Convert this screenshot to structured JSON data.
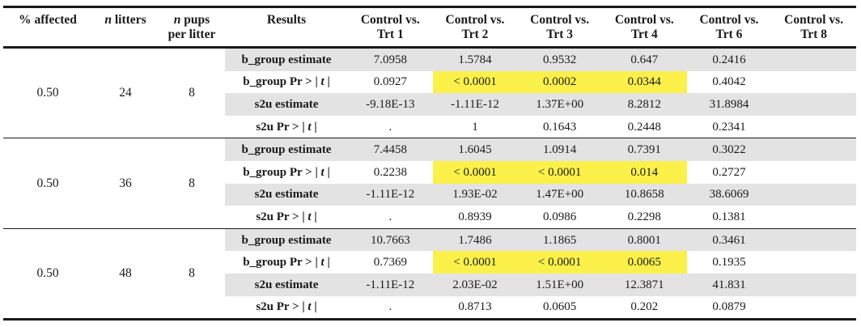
{
  "table": {
    "headers": {
      "pct_affected": "% affected",
      "n_litters_italic": "n",
      "n_litters_rest": " litters",
      "n_pups_italic": "n",
      "n_pups_rest_1": " pups",
      "n_pups_rest_2": "per litter",
      "results": "Results",
      "comparisons": [
        {
          "line1": "Control vs.",
          "line2": "Trt 1"
        },
        {
          "line1": "Control vs.",
          "line2": "Trt 2"
        },
        {
          "line1": "Control vs.",
          "line2": "Trt 3"
        },
        {
          "line1": "Control vs.",
          "line2": "Trt 4"
        },
        {
          "line1": "Control vs.",
          "line2": "Trt 6"
        },
        {
          "line1": "Control vs.",
          "line2": "Trt 8"
        }
      ]
    },
    "highlight_color": "#fcf14b",
    "shade_color": "#e3e3e3",
    "groups": [
      {
        "pct_affected": "0.50",
        "n_litters": "24",
        "n_pups": "8",
        "rows": [
          {
            "label": "b_group estimate",
            "values": [
              "7.0958",
              "1.5784",
              "0.9532",
              "0.647",
              "0.2416",
              ""
            ],
            "highlight": [
              false,
              false,
              false,
              false,
              false,
              false
            ]
          },
          {
            "label_pre": "b_group Pr > | ",
            "label_t": "t",
            "label_post": " |",
            "values": [
              "0.0927",
              "< 0.0001",
              "0.0002",
              "0.0344",
              "0.4042",
              ""
            ],
            "highlight": [
              false,
              true,
              true,
              true,
              false,
              false
            ]
          },
          {
            "label": "s2u estimate",
            "values": [
              "-9.18E-13",
              "-1.11E-12",
              "1.37E+00",
              "8.2812",
              "31.8984",
              ""
            ],
            "highlight": [
              false,
              false,
              false,
              false,
              false,
              false
            ]
          },
          {
            "label_pre": "s2u Pr > | ",
            "label_t": "t",
            "label_post": " |",
            "values": [
              ".",
              "1",
              "0.1643",
              "0.2448",
              "0.2341",
              ""
            ],
            "highlight": [
              false,
              false,
              false,
              false,
              false,
              false
            ]
          }
        ]
      },
      {
        "pct_affected": "0.50",
        "n_litters": "36",
        "n_pups": "8",
        "rows": [
          {
            "label": "b_group estimate",
            "values": [
              "7.4458",
              "1.6045",
              "1.0914",
              "0.7391",
              "0.3022",
              ""
            ],
            "highlight": [
              false,
              false,
              false,
              false,
              false,
              false
            ]
          },
          {
            "label_pre": "b_group Pr > | ",
            "label_t": "t",
            "label_post": " |",
            "values": [
              "0.2238",
              "< 0.0001",
              "< 0.0001",
              "0.014",
              "0.2727",
              ""
            ],
            "highlight": [
              false,
              true,
              true,
              true,
              false,
              false
            ]
          },
          {
            "label": "s2u estimate",
            "values": [
              "-1.11E-12",
              "1.93E-02",
              "1.47E+00",
              "10.8658",
              "38.6069",
              ""
            ],
            "highlight": [
              false,
              false,
              false,
              false,
              false,
              false
            ]
          },
          {
            "label_pre": "s2u Pr > | ",
            "label_t": "t",
            "label_post": " |",
            "values": [
              ".",
              "0.8939",
              "0.0986",
              "0.2298",
              "0.1381",
              ""
            ],
            "highlight": [
              false,
              false,
              false,
              false,
              false,
              false
            ]
          }
        ]
      },
      {
        "pct_affected": "0.50",
        "n_litters": "48",
        "n_pups": "8",
        "rows": [
          {
            "label": "b_group estimate",
            "values": [
              "10.7663",
              "1.7486",
              "1.1865",
              "0.8001",
              "0.3461",
              ""
            ],
            "highlight": [
              false,
              false,
              false,
              false,
              false,
              false
            ]
          },
          {
            "label_pre": "b_group Pr > | ",
            "label_t": "t",
            "label_post": " |",
            "values": [
              "0.7369",
              "< 0.0001",
              "< 0.0001",
              "0.0065",
              "0.1935",
              ""
            ],
            "highlight": [
              false,
              true,
              true,
              true,
              false,
              false
            ]
          },
          {
            "label": "s2u estimate",
            "values": [
              "-1.11E-12",
              "2.03E-02",
              "1.51E+00",
              "12.3871",
              "41.831",
              ""
            ],
            "highlight": [
              false,
              false,
              false,
              false,
              false,
              false
            ]
          },
          {
            "label_pre": "s2u Pr > | ",
            "label_t": "t",
            "label_post": " |",
            "values": [
              ".",
              "0.8713",
              "0.0605",
              "0.202",
              "0.0879",
              ""
            ],
            "highlight": [
              false,
              false,
              false,
              false,
              false,
              false
            ]
          }
        ]
      }
    ]
  }
}
